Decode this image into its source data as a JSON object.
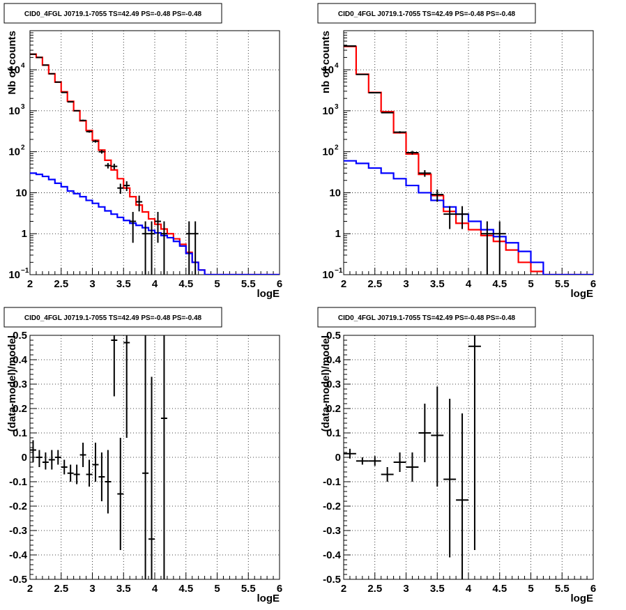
{
  "chart_data": [
    {
      "type": "line",
      "title": "CID0_4FGL J0719.1-7055 TS=42.49 PS=-0.48 PS=-0.48",
      "xlabel": "logE",
      "ylabel": "Nb of counts",
      "xlim": [
        2,
        6
      ],
      "ylim": [
        0.1,
        90000
      ],
      "yscale": "log",
      "grid": true,
      "xticks": [
        "2",
        "2.5",
        "3",
        "3.5",
        "4",
        "4.5",
        "5",
        "5.5",
        "6"
      ],
      "yticks": [
        {
          "v": 0.1,
          "m": "10",
          "e": "−1"
        },
        {
          "v": 1,
          "m": "1",
          "e": ""
        },
        {
          "v": 10,
          "m": "10",
          "e": ""
        },
        {
          "v": 100,
          "m": "10",
          "e": "2"
        },
        {
          "v": 1000,
          "m": "10",
          "e": "3"
        },
        {
          "v": 10000,
          "m": "10",
          "e": "4"
        }
      ],
      "bin_edges": [
        2.0,
        2.1,
        2.2,
        2.3,
        2.4,
        2.5,
        2.6,
        2.7,
        2.8,
        2.9,
        3.0,
        3.1,
        3.2,
        3.3,
        3.4,
        3.5,
        3.6,
        3.7,
        3.8,
        3.9,
        4.0,
        4.1,
        4.2,
        4.3,
        4.4,
        4.5,
        4.6,
        4.7,
        4.8,
        4.9,
        5.0,
        5.1,
        5.2,
        5.3,
        5.4,
        5.5,
        5.6,
        5.7,
        5.8,
        5.9,
        6.0
      ],
      "series": [
        {
          "color": "#ff0000",
          "style": "step",
          "values": [
            24000,
            20000,
            13000,
            8000,
            5000,
            2900,
            1700,
            1000,
            570,
            330,
            190,
            110,
            62,
            36,
            22,
            13,
            8,
            5,
            3.4,
            2.3,
            1.7,
            1.3,
            1.0,
            0.75,
            0.55,
            0.35,
            0.2,
            0.13,
            0.1,
            0.1,
            0.1,
            0.1,
            0.1,
            0.1,
            0.1,
            0.1,
            0.1,
            0.1,
            0.1,
            0.1
          ]
        },
        {
          "color": "#0000ff",
          "style": "step",
          "values": [
            30,
            28,
            25,
            21,
            17,
            14,
            11,
            9.5,
            8,
            6.5,
            5.5,
            4.5,
            3.6,
            3,
            2.5,
            2.1,
            1.8,
            1.6,
            1.4,
            1.2,
            1.05,
            0.9,
            0.8,
            0.65,
            0.5,
            0.33,
            0.2,
            0.13,
            0.1,
            0.1,
            0.1,
            0.1,
            0.1,
            0.1,
            0.1,
            0.1,
            0.1,
            0.1,
            0.1,
            0.1
          ]
        },
        {
          "color": "#000000",
          "style": "errorbar",
          "xhalf": 0.05,
          "points": [
            {
              "x": 2.05,
              "y": 24000,
              "lo": 23800,
              "hi": 24200
            },
            {
              "x": 2.15,
              "y": 20000,
              "lo": 19800,
              "hi": 20200
            },
            {
              "x": 2.25,
              "y": 13000,
              "lo": 12900,
              "hi": 13100
            },
            {
              "x": 2.35,
              "y": 8000,
              "lo": 7900,
              "hi": 8100
            },
            {
              "x": 2.45,
              "y": 5000,
              "lo": 4930,
              "hi": 5070
            },
            {
              "x": 2.55,
              "y": 2800,
              "lo": 2750,
              "hi": 2850
            },
            {
              "x": 2.65,
              "y": 1650,
              "lo": 1610,
              "hi": 1690
            },
            {
              "x": 2.75,
              "y": 1000,
              "lo": 970,
              "hi": 1030
            },
            {
              "x": 2.85,
              "y": 580,
              "lo": 555,
              "hi": 605
            },
            {
              "x": 2.95,
              "y": 310,
              "lo": 292,
              "hi": 328
            },
            {
              "x": 3.05,
              "y": 180,
              "lo": 167,
              "hi": 193
            },
            {
              "x": 3.15,
              "y": 100,
              "lo": 90,
              "hi": 110
            },
            {
              "x": 3.25,
              "y": 46,
              "lo": 39,
              "hi": 53
            },
            {
              "x": 3.35,
              "y": 44,
              "lo": 37,
              "hi": 51
            },
            {
              "x": 3.45,
              "y": 13,
              "lo": 9.4,
              "hi": 16.6
            },
            {
              "x": 3.55,
              "y": 15,
              "lo": 11,
              "hi": 19
            },
            {
              "x": 3.65,
              "y": 2,
              "lo": 0.6,
              "hi": 3.4
            },
            {
              "x": 3.75,
              "y": 6,
              "lo": 3.5,
              "hi": 8.5
            },
            {
              "x": 3.85,
              "y": 1,
              "lo": 0.1,
              "hi": 2
            },
            {
              "x": 3.95,
              "y": 1,
              "lo": 0.1,
              "hi": 2
            },
            {
              "x": 4.05,
              "y": 2,
              "lo": 0.6,
              "hi": 3.4
            },
            {
              "x": 4.15,
              "y": 1,
              "lo": 0.1,
              "hi": 2
            },
            {
              "x": 4.55,
              "y": 1,
              "lo": 0.1,
              "hi": 2
            },
            {
              "x": 4.65,
              "y": 1,
              "lo": 0.1,
              "hi": 2
            }
          ]
        }
      ]
    },
    {
      "type": "line",
      "title": "CID0_4FGL J0719.1-7055 TS=42.49 PS=-0.48 PS=-0.48",
      "xlabel": "logE",
      "ylabel": "nb of counts",
      "xlim": [
        2,
        6
      ],
      "ylim": [
        0.1,
        90000
      ],
      "yscale": "log",
      "grid": true,
      "xticks": [
        "2",
        "2.5",
        "3",
        "3.5",
        "4",
        "4.5",
        "5",
        "5.5",
        "6"
      ],
      "yticks": [
        {
          "v": 0.1,
          "m": "10",
          "e": "−1"
        },
        {
          "v": 1,
          "m": "1",
          "e": ""
        },
        {
          "v": 10,
          "m": "10",
          "e": ""
        },
        {
          "v": 100,
          "m": "10",
          "e": "2"
        },
        {
          "v": 1000,
          "m": "10",
          "e": "3"
        },
        {
          "v": 10000,
          "m": "10",
          "e": "4"
        }
      ],
      "bin_edges": [
        2.0,
        2.2,
        2.4,
        2.6,
        2.8,
        3.0,
        3.2,
        3.4,
        3.6,
        3.8,
        4.0,
        4.2,
        4.4,
        4.6,
        4.8,
        5.0,
        5.2,
        5.4,
        5.6,
        5.8,
        6.0
      ],
      "series": [
        {
          "color": "#ff0000",
          "style": "step",
          "values": [
            37000,
            7800,
            2800,
            950,
            290,
            88,
            28,
            8.5,
            3.5,
            1.8,
            1.25,
            0.9,
            0.65,
            0.4,
            0.2,
            0.12,
            0.1,
            0.1,
            0.1,
            0.1
          ]
        },
        {
          "color": "#0000ff",
          "style": "step",
          "values": [
            60,
            52,
            40,
            30,
            22,
            15,
            10,
            6.5,
            4.5,
            3,
            2,
            1.25,
            0.85,
            0.6,
            0.37,
            0.2,
            0.1,
            0.1,
            0.1,
            0.1
          ]
        },
        {
          "color": "#000000",
          "style": "errorbar",
          "xhalf": 0.1,
          "points": [
            {
              "x": 2.1,
              "y": 38000,
              "lo": 37800,
              "hi": 38200
            },
            {
              "x": 2.3,
              "y": 7700,
              "lo": 7610,
              "hi": 7790
            },
            {
              "x": 2.5,
              "y": 2750,
              "lo": 2698,
              "hi": 2802
            },
            {
              "x": 2.7,
              "y": 900,
              "lo": 870,
              "hi": 930
            },
            {
              "x": 2.9,
              "y": 300,
              "lo": 283,
              "hi": 317
            },
            {
              "x": 3.1,
              "y": 95,
              "lo": 85,
              "hi": 105
            },
            {
              "x": 3.3,
              "y": 30,
              "lo": 24.5,
              "hi": 35.5
            },
            {
              "x": 3.5,
              "y": 9,
              "lo": 6,
              "hi": 12
            },
            {
              "x": 3.7,
              "y": 3,
              "lo": 1.3,
              "hi": 4.7
            },
            {
              "x": 3.9,
              "y": 3,
              "lo": 1.3,
              "hi": 4.7
            },
            {
              "x": 4.3,
              "y": 1,
              "lo": 0.1,
              "hi": 2
            },
            {
              "x": 4.5,
              "y": 1,
              "lo": 0.1,
              "hi": 2
            }
          ]
        }
      ]
    },
    {
      "type": "scatter",
      "title": "CID0_4FGL J0719.1-7055 TS=42.49 PS=-0.48 PS=-0.48",
      "xlabel": "logE",
      "ylabel": "(data-model)/model",
      "xlim": [
        2,
        6
      ],
      "ylim": [
        -0.5,
        0.5
      ],
      "grid": true,
      "xticks": [
        "2",
        "2.5",
        "3",
        "3.5",
        "4",
        "4.5",
        "5",
        "5.5",
        "6"
      ],
      "yticks": [
        "-0.5",
        "-0.4",
        "-0.3",
        "-0.2",
        "-0.1",
        "0",
        "0.1",
        "0.2",
        "0.3",
        "0.4",
        "0.5"
      ],
      "series": [
        {
          "color": "#000000",
          "style": "errorbar",
          "xhalf": 0.05,
          "points": [
            {
              "x": 2.05,
              "y": 0.03,
              "lo": -0.02,
              "hi": 0.07
            },
            {
              "x": 2.15,
              "y": 0.0,
              "lo": -0.04,
              "hi": 0.03
            },
            {
              "x": 2.25,
              "y": -0.02,
              "lo": -0.05,
              "hi": 0.02
            },
            {
              "x": 2.35,
              "y": -0.01,
              "lo": -0.05,
              "hi": 0.03
            },
            {
              "x": 2.45,
              "y": 0.0,
              "lo": -0.03,
              "hi": 0.03
            },
            {
              "x": 2.55,
              "y": -0.04,
              "lo": -0.07,
              "hi": -0.01
            },
            {
              "x": 2.65,
              "y": -0.065,
              "lo": -0.1,
              "hi": -0.03
            },
            {
              "x": 2.75,
              "y": -0.07,
              "lo": -0.11,
              "hi": -0.03
            },
            {
              "x": 2.85,
              "y": 0.01,
              "lo": -0.04,
              "hi": 0.06
            },
            {
              "x": 2.95,
              "y": -0.07,
              "lo": -0.12,
              "hi": -0.01
            },
            {
              "x": 3.05,
              "y": -0.03,
              "lo": -0.1,
              "hi": 0.06
            },
            {
              "x": 3.15,
              "y": -0.08,
              "lo": -0.18,
              "hi": 0.02
            },
            {
              "x": 3.25,
              "y": -0.1,
              "lo": -0.23,
              "hi": 0.03
            },
            {
              "x": 3.35,
              "y": 0.48,
              "lo": 0.25,
              "hi": 0.5
            },
            {
              "x": 3.45,
              "y": -0.15,
              "lo": -0.38,
              "hi": 0.08
            },
            {
              "x": 3.55,
              "y": 0.47,
              "lo": 0.08,
              "hi": 0.5
            },
            {
              "x": 3.85,
              "y": -0.065,
              "lo": -0.5,
              "hi": 0.5
            },
            {
              "x": 3.95,
              "y": -0.335,
              "lo": -0.5,
              "hi": 0.33
            },
            {
              "x": 4.15,
              "y": 0.16,
              "lo": -0.5,
              "hi": 0.5
            }
          ]
        }
      ]
    },
    {
      "type": "scatter",
      "title": "CID0_4FGL J0719.1-7055 TS=42.49 PS=-0.48 PS=-0.48",
      "xlabel": "logE",
      "ylabel": "(data-model)/model",
      "xlim": [
        2,
        6
      ],
      "ylim": [
        -0.5,
        0.5
      ],
      "grid": true,
      "xticks": [
        "2",
        "2.5",
        "3",
        "3.5",
        "4",
        "4.5",
        "5",
        "5.5",
        "6"
      ],
      "yticks": [
        "-0.5",
        "-0.4",
        "-0.3",
        "-0.2",
        "-0.1",
        "0",
        "0.1",
        "0.2",
        "0.3",
        "0.4",
        "0.5"
      ],
      "series": [
        {
          "color": "#000000",
          "style": "errorbar",
          "xhalf": 0.1,
          "points": [
            {
              "x": 2.1,
              "y": 0.015,
              "lo": -0.005,
              "hi": 0.035
            },
            {
              "x": 2.3,
              "y": -0.015,
              "lo": -0.03,
              "hi": 0.0
            },
            {
              "x": 2.5,
              "y": -0.015,
              "lo": -0.035,
              "hi": 0.005
            },
            {
              "x": 2.7,
              "y": -0.07,
              "lo": -0.1,
              "hi": -0.04
            },
            {
              "x": 2.9,
              "y": -0.02,
              "lo": -0.06,
              "hi": 0.02
            },
            {
              "x": 3.1,
              "y": -0.04,
              "lo": -0.1,
              "hi": 0.02
            },
            {
              "x": 3.3,
              "y": 0.1,
              "lo": -0.02,
              "hi": 0.22
            },
            {
              "x": 3.5,
              "y": 0.09,
              "lo": -0.12,
              "hi": 0.29
            },
            {
              "x": 3.7,
              "y": -0.09,
              "lo": -0.41,
              "hi": 0.24
            },
            {
              "x": 3.9,
              "y": -0.175,
              "lo": -0.5,
              "hi": 0.18
            },
            {
              "x": 4.1,
              "y": 0.455,
              "lo": -0.38,
              "hi": 0.5
            }
          ]
        }
      ]
    }
  ]
}
